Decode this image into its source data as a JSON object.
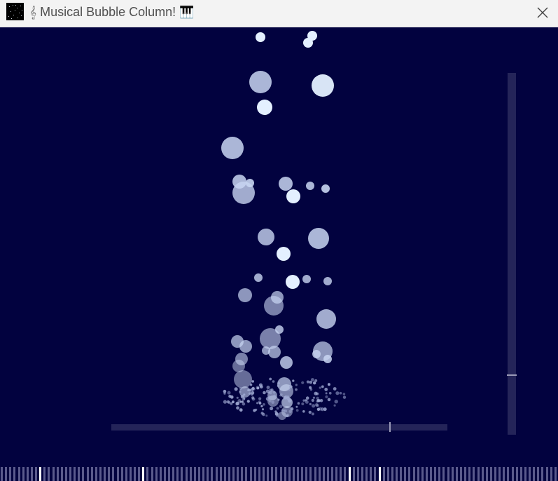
{
  "window": {
    "title": "Musical Bubble Column!",
    "title_prefix_icon": "musical-score-icon",
    "title_suffix_icon": "musical-keyboard-icon",
    "app_icon": "starfield-icon",
    "close_icon": "close-icon"
  },
  "colors": {
    "scene_background": "#02023f",
    "titlebar_background": "#f3f3f3",
    "slider_track": "#242459",
    "slider_thumb": "#9a9ab8",
    "key_idle": "#5a5a8c",
    "key_active": "#ffffff",
    "bubble_bright": "#e4f0ff",
    "bubble_dim": "#9fa9d2"
  },
  "horizontal_slider": {
    "value": 0.83
  },
  "vertical_slider": {
    "value": 0.165
  },
  "keyboard": {
    "key_count": 130,
    "active_keys": [
      9,
      33,
      81,
      88
    ]
  }
}
